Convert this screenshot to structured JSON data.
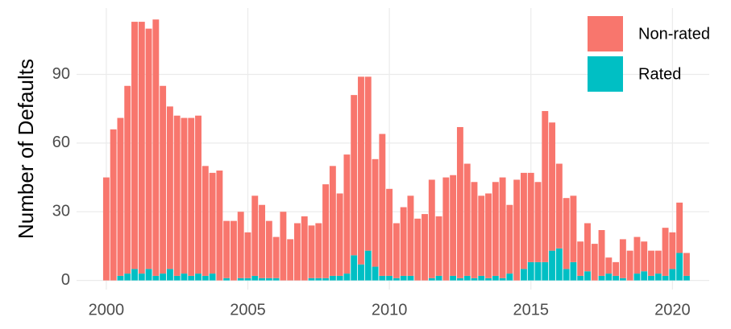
{
  "chart_data": {
    "type": "bar",
    "stacked": true,
    "y_label": "Number of Defaults",
    "x": [
      2000,
      2000.25,
      2000.5,
      2000.75,
      2001,
      2001.25,
      2001.5,
      2001.75,
      2002,
      2002.25,
      2002.5,
      2002.75,
      2003,
      2003.25,
      2003.5,
      2003.75,
      2004,
      2004.25,
      2004.5,
      2004.75,
      2005,
      2005.25,
      2005.5,
      2005.75,
      2006,
      2006.25,
      2006.5,
      2006.75,
      2007,
      2007.25,
      2007.5,
      2007.75,
      2008,
      2008.25,
      2008.5,
      2008.75,
      2009,
      2009.25,
      2009.5,
      2009.75,
      2010,
      2010.25,
      2010.5,
      2010.75,
      2011,
      2011.25,
      2011.5,
      2011.75,
      2012,
      2012.25,
      2012.5,
      2012.75,
      2013,
      2013.25,
      2013.5,
      2013.75,
      2014,
      2014.25,
      2014.5,
      2014.75,
      2015,
      2015.25,
      2015.5,
      2015.75,
      2016,
      2016.25,
      2016.5,
      2016.75,
      2017,
      2017.25,
      2017.5,
      2017.75,
      2018,
      2018.25,
      2018.5,
      2018.75,
      2019,
      2019.25,
      2019.5,
      2019.75,
      2020,
      2020.25,
      2020.5
    ],
    "series": [
      {
        "name": "Non-rated",
        "color": "#F8766D",
        "values": [
          45,
          66,
          69,
          82,
          108,
          110,
          105,
          112,
          82,
          71,
          70,
          68,
          69,
          69,
          48,
          44,
          48,
          25,
          26,
          29,
          20,
          35,
          32,
          25,
          18,
          30,
          18,
          25,
          28,
          23,
          24,
          41,
          48,
          36,
          52,
          70,
          82,
          76,
          47,
          62,
          38,
          24,
          30,
          35,
          27,
          29,
          43,
          26,
          45,
          44,
          66,
          49,
          42,
          35,
          37,
          41,
          44,
          30,
          44,
          42,
          39,
          35,
          66,
          56,
          37,
          31,
          29,
          15,
          21,
          16,
          20,
          7,
          6,
          17,
          13,
          16,
          13,
          11,
          10,
          21,
          16,
          22,
          10
        ]
      },
      {
        "name": "Rated",
        "color": "#00BFC4",
        "values": [
          0,
          0,
          2,
          3,
          5,
          3,
          5,
          2,
          3,
          5,
          2,
          3,
          2,
          3,
          2,
          3,
          0,
          1,
          0,
          1,
          1,
          2,
          1,
          1,
          1,
          0,
          0,
          0,
          0,
          1,
          1,
          1,
          2,
          2,
          3,
          11,
          7,
          13,
          6,
          2,
          2,
          1,
          2,
          2,
          0,
          0,
          1,
          2,
          0,
          2,
          1,
          2,
          1,
          2,
          1,
          2,
          1,
          3,
          0,
          5,
          8,
          8,
          8,
          13,
          14,
          5,
          8,
          2,
          4,
          0,
          2,
          3,
          2,
          1,
          0,
          3,
          4,
          2,
          3,
          2,
          5,
          12,
          2
        ]
      }
    ],
    "xlim": [
      1998.95,
      2021.3
    ],
    "xticks": [
      2000,
      2005,
      2010,
      2015,
      2020
    ],
    "ylim": [
      -4,
      119
    ],
    "yticks": [
      0,
      30,
      60,
      90
    ],
    "grid": true,
    "legend_position": "top-right"
  }
}
